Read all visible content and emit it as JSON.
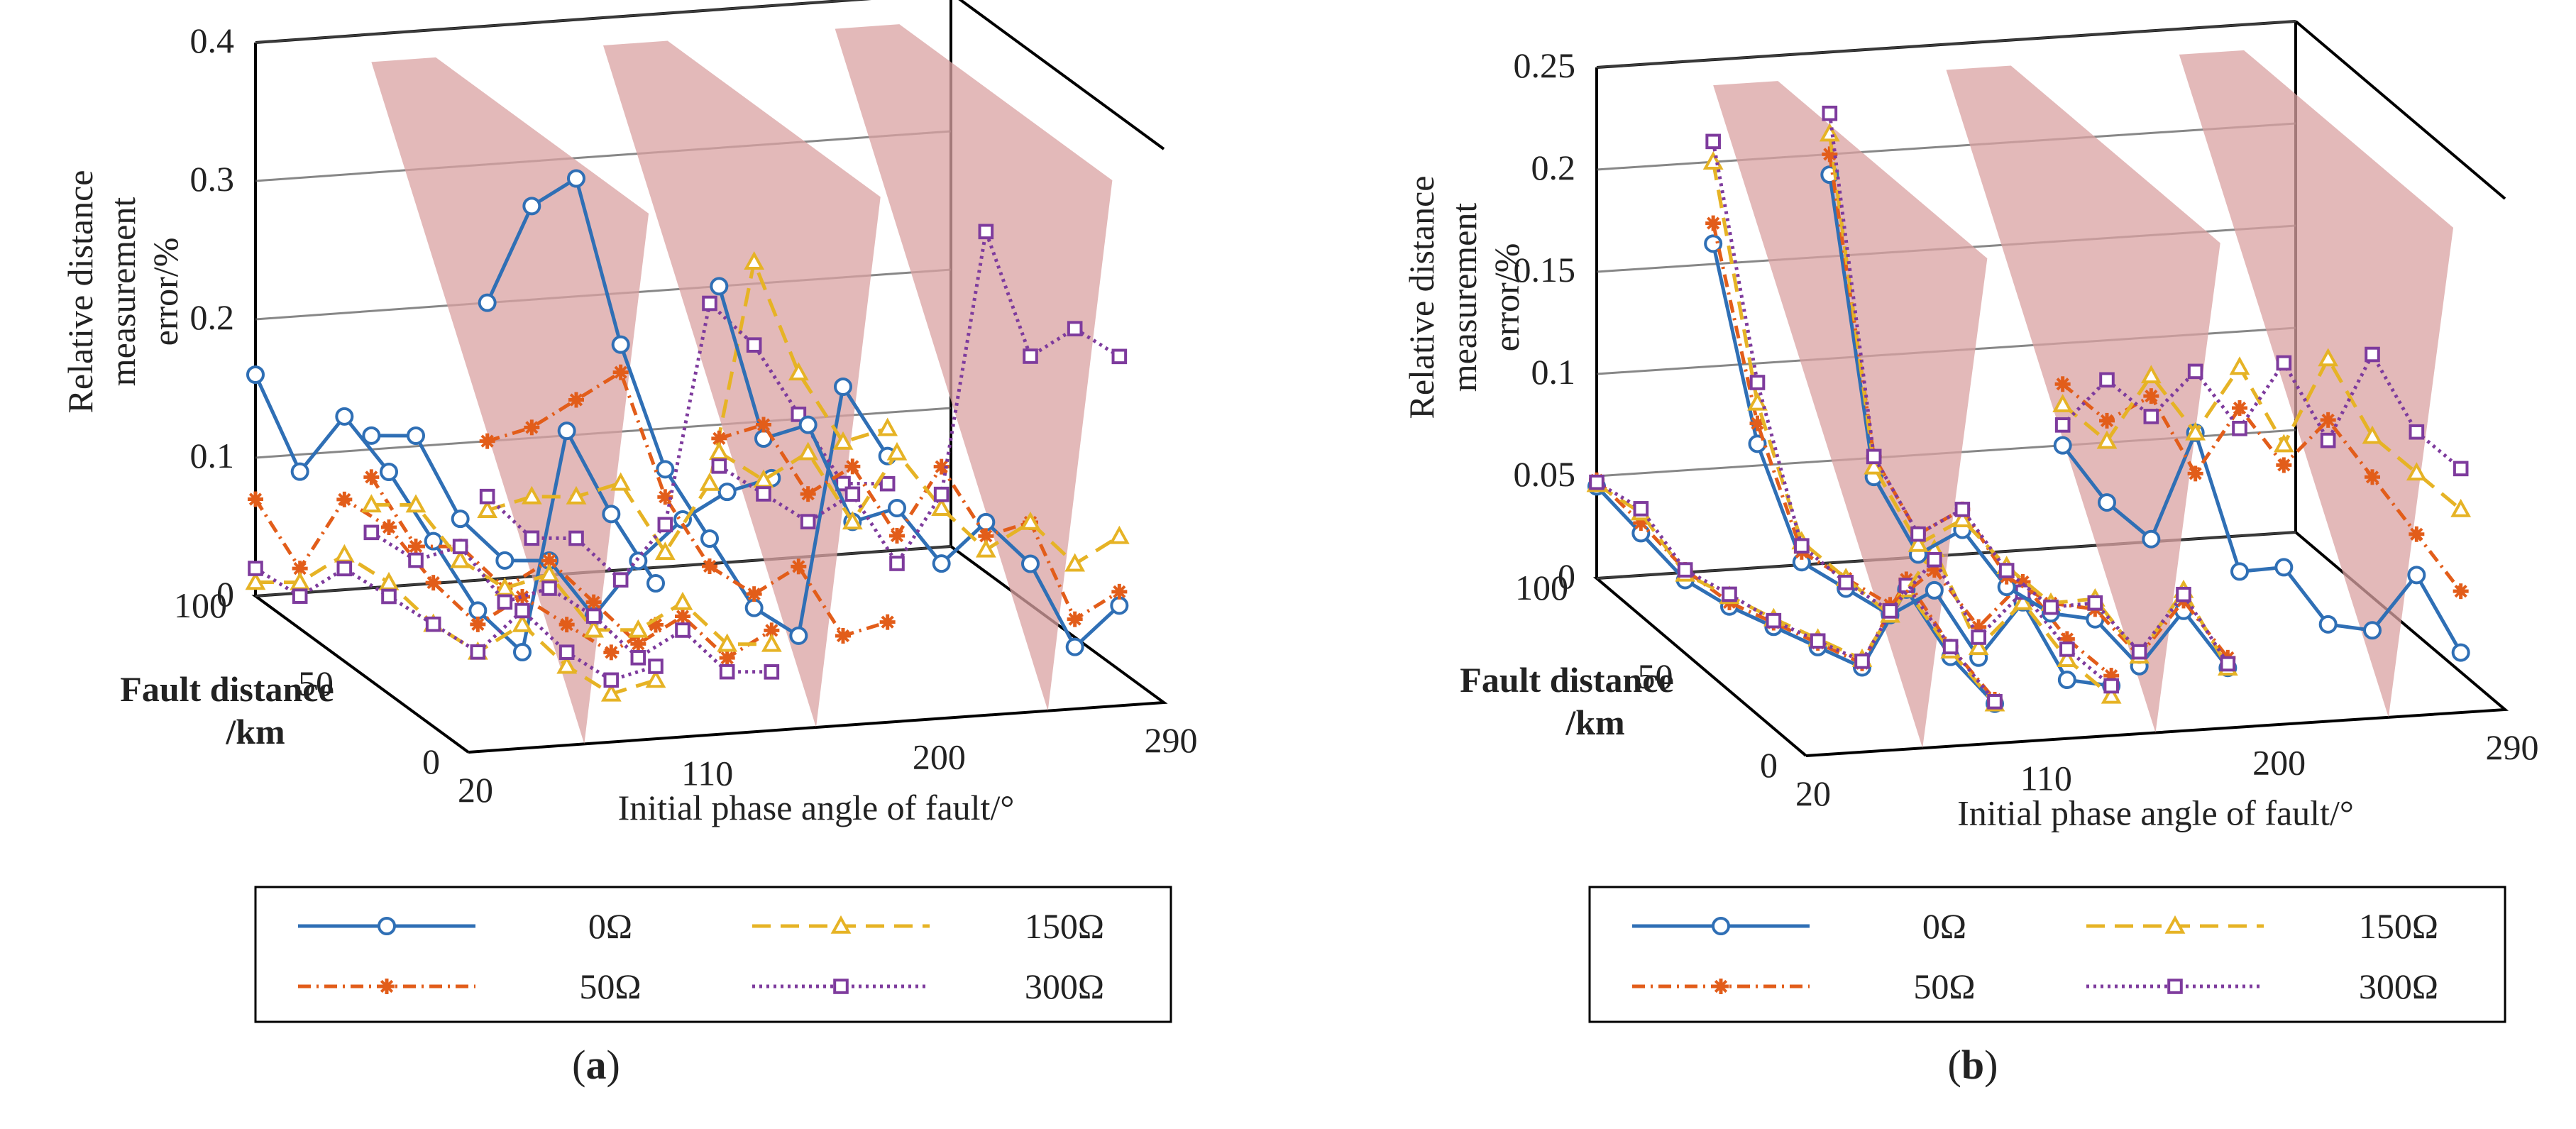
{
  "chart_data": [
    {
      "type": "line3d",
      "panel_label_open": "(",
      "panel_label_letter": "a",
      "panel_label_close": ")",
      "zlabel_lines": [
        "Relative distance",
        "measurement",
        "error/%"
      ],
      "ylabel_lines": [
        "Fault distance",
        "/km"
      ],
      "xlabel": "Initial phase angle of fault/°",
      "xticks": [
        "20",
        "110",
        "200",
        "290"
      ],
      "yticks": [
        "0",
        "50",
        "100"
      ],
      "zticks": [
        "0",
        "0.1",
        "0.2",
        "0.3",
        "0.4"
      ],
      "zmax": 0.4,
      "cut_planes_at_deg": [
        65,
        155,
        245
      ],
      "segments": [
        {
          "start_deg": 20,
          "series": [
            {
              "name": "0Ω",
              "values": [
                0.16,
                0.1,
                0.15,
                0.12,
                0.08,
                0.04,
                0.02,
                0.19,
                0.14,
                0.1
              ]
            },
            {
              "name": "50Ω",
              "values": [
                0.07,
                0.03,
                0.09,
                0.08,
                0.05,
                0.03,
                0.06,
                0.05,
                0.04,
                0.07
              ]
            },
            {
              "name": "150Ω",
              "values": [
                0.01,
                0.02,
                0.05,
                0.04,
                0.02,
                0.01,
                0.04,
                0.02,
                0.01,
                0.03
              ]
            },
            {
              "name": "300Ω",
              "values": [
                0.02,
                0.01,
                0.04,
                0.03,
                0.02,
                0.01,
                0.05,
                0.03,
                0.02,
                0.04
              ]
            }
          ]
        },
        {
          "start_deg": 65,
          "series": [
            {
              "name": "0Ω",
              "values": [
                0.11,
                0.12,
                0.07,
                0.05,
                0.06,
                0.03,
                0.08,
                0.12,
                0.15,
                0.17
              ]
            },
            {
              "name": "50Ω",
              "values": [
                0.08,
                0.04,
                0.05,
                0.03,
                0.06,
                0.04,
                0.02,
                0.05,
                0.03,
                0.06
              ]
            },
            {
              "name": "150Ω",
              "values": [
                0.06,
                0.07,
                0.04,
                0.03,
                0.05,
                0.02,
                0.03,
                0.06,
                0.04,
                0.05
              ]
            },
            {
              "name": "300Ω",
              "values": [
                0.04,
                0.03,
                0.05,
                0.02,
                0.04,
                0.03,
                0.01,
                0.04,
                0.02,
                0.03
              ]
            }
          ]
        },
        {
          "start_deg": 110,
          "series": [
            {
              "name": "0Ω",
              "values": [
                0.2,
                0.28,
                0.31,
                0.2,
                0.12,
                0.08,
                0.04,
                0.03,
                0.22,
                0.18
              ]
            },
            {
              "name": "50Ω",
              "values": [
                0.1,
                0.12,
                0.15,
                0.18,
                0.1,
                0.06,
                0.05,
                0.08,
                0.04,
                0.06
              ]
            },
            {
              "name": "150Ω",
              "values": [
                0.05,
                0.07,
                0.08,
                0.1,
                0.06,
                0.12,
                0.29,
                0.22,
                0.18,
                0.2
              ]
            },
            {
              "name": "300Ω",
              "values": [
                0.06,
                0.04,
                0.05,
                0.03,
                0.08,
                0.25,
                0.23,
                0.19,
                0.15,
                0.16
              ]
            }
          ]
        },
        {
          "start_deg": 200,
          "series": [
            {
              "name": "0Ω",
              "values": [
                0.2,
                0.1,
                0.12,
                0.06,
                0.08,
                0.05,
                0.09,
                0.07,
                0.02,
                0.06
              ]
            },
            {
              "name": "50Ω",
              "values": [
                0.09,
                0.11,
                0.07,
                0.1,
                0.06,
                0.12,
                0.08,
                0.1,
                0.04,
                0.07
              ]
            },
            {
              "name": "150Ω",
              "values": [
                0.08,
                0.07,
                0.1,
                0.06,
                0.12,
                0.09,
                0.07,
                0.1,
                0.08,
                0.11
              ]
            },
            {
              "name": "300Ω",
              "values": [
                0.07,
                0.06,
                0.05,
                0.08,
                0.04,
                0.1,
                0.3,
                0.22,
                0.25,
                0.24
              ]
            }
          ]
        }
      ]
    },
    {
      "type": "line3d",
      "panel_label_open": "(",
      "panel_label_letter": "b",
      "panel_label_close": ")",
      "zlabel_lines": [
        "Relative distance",
        "measurement",
        "error/%"
      ],
      "ylabel_lines": [
        "Fault distance",
        "/km"
      ],
      "xlabel": "Initial phase angle of fault/°",
      "xticks": [
        "20",
        "110",
        "200",
        "290"
      ],
      "yticks": [
        "0",
        "50",
        "100"
      ],
      "zticks": [
        "0",
        "0.05",
        "0.1",
        "0.15",
        "0.2",
        "0.25"
      ],
      "zmax": 0.25,
      "cut_planes_at_deg": [
        65,
        155,
        245
      ],
      "segments": [
        {
          "start_deg": 20,
          "series": [
            {
              "name": "0Ω",
              "values": [
                0.045,
                0.03,
                0.015,
                0.01,
                0.008,
                0.006,
                0.004,
                0.05,
                0.025,
                0.01
              ]
            },
            {
              "name": "50Ω",
              "values": [
                0.048,
                0.035,
                0.02,
                0.012,
                0.01,
                0.008,
                0.006,
                0.055,
                0.03,
                0.012
              ]
            },
            {
              "name": "150Ω",
              "values": [
                0.046,
                0.04,
                0.018,
                0.015,
                0.012,
                0.01,
                0.008,
                0.05,
                0.028,
                0.01
              ]
            },
            {
              "name": "300Ω",
              "values": [
                0.047,
                0.042,
                0.02,
                0.016,
                0.011,
                0.009,
                0.007,
                0.052,
                0.03,
                0.011
              ]
            }
          ]
        },
        {
          "start_deg": 65,
          "series": [
            {
              "name": "0Ω",
              "values": [
                0.16,
                0.07,
                0.02,
                0.015,
                0.01,
                0.03,
                0.005,
                0.04,
                0.01,
                0.015
              ]
            },
            {
              "name": "50Ω",
              "values": [
                0.17,
                0.08,
                0.025,
                0.02,
                0.015,
                0.04,
                0.02,
                0.05,
                0.03,
                0.02
              ]
            },
            {
              "name": "150Ω",
              "values": [
                0.2,
                0.09,
                0.03,
                0.02,
                0.01,
                0.05,
                0.01,
                0.04,
                0.02,
                0.01
              ]
            },
            {
              "name": "300Ω",
              "values": [
                0.21,
                0.1,
                0.028,
                0.018,
                0.012,
                0.045,
                0.015,
                0.045,
                0.025,
                0.015
              ]
            }
          ]
        },
        {
          "start_deg": 110,
          "series": [
            {
              "name": "0Ω",
              "values": [
                0.19,
                0.05,
                0.02,
                0.04,
                0.02,
                0.015,
                0.02,
                0.005,
                0.04,
                0.02
              ]
            },
            {
              "name": "50Ω",
              "values": [
                0.2,
                0.06,
                0.03,
                0.05,
                0.025,
                0.02,
                0.025,
                0.01,
                0.045,
                0.025
              ]
            },
            {
              "name": "150Ω",
              "values": [
                0.21,
                0.055,
                0.025,
                0.045,
                0.03,
                0.02,
                0.03,
                0.01,
                0.05,
                0.02
              ]
            },
            {
              "name": "300Ω",
              "values": [
                0.22,
                0.06,
                0.03,
                0.05,
                0.028,
                0.018,
                0.028,
                0.012,
                0.048,
                0.022
              ]
            }
          ]
        },
        {
          "start_deg": 200,
          "series": [
            {
              "name": "0Ω",
              "values": [
                0.05,
                0.03,
                0.02,
                0.08,
                0.02,
                0.03,
                0.01,
                0.015,
                0.05,
                0.02
              ]
            },
            {
              "name": "50Ω",
              "values": [
                0.08,
                0.07,
                0.09,
                0.06,
                0.1,
                0.08,
                0.11,
                0.09,
                0.07,
                0.05
              ]
            },
            {
              "name": "150Ω",
              "values": [
                0.07,
                0.06,
                0.1,
                0.08,
                0.12,
                0.09,
                0.14,
                0.11,
                0.1,
                0.09
              ]
            },
            {
              "name": "300Ω",
              "values": [
                0.06,
                0.09,
                0.08,
                0.11,
                0.09,
                0.13,
                0.1,
                0.15,
                0.12,
                0.11
              ]
            }
          ]
        }
      ]
    }
  ],
  "legend": [
    {
      "name": "0Ω",
      "color": "#2f6fb5",
      "dash": "",
      "marker": "circle",
      "marker_glyph": "o"
    },
    {
      "name": "50Ω",
      "color": "#e25d1a",
      "dash": "18 8 3 8",
      "marker": "star",
      "marker_glyph": "*"
    },
    {
      "name": "150Ω",
      "color": "#e6b325",
      "dash": "26 14",
      "marker": "triangle",
      "marker_glyph": "^"
    },
    {
      "name": "300Ω",
      "color": "#7e3b9d",
      "dash": "4 6",
      "marker": "square",
      "marker_glyph": "s"
    }
  ],
  "colors": {
    "plane_fill": "#d9a1a1",
    "frame": "#000000",
    "legend_border": "#000000"
  }
}
